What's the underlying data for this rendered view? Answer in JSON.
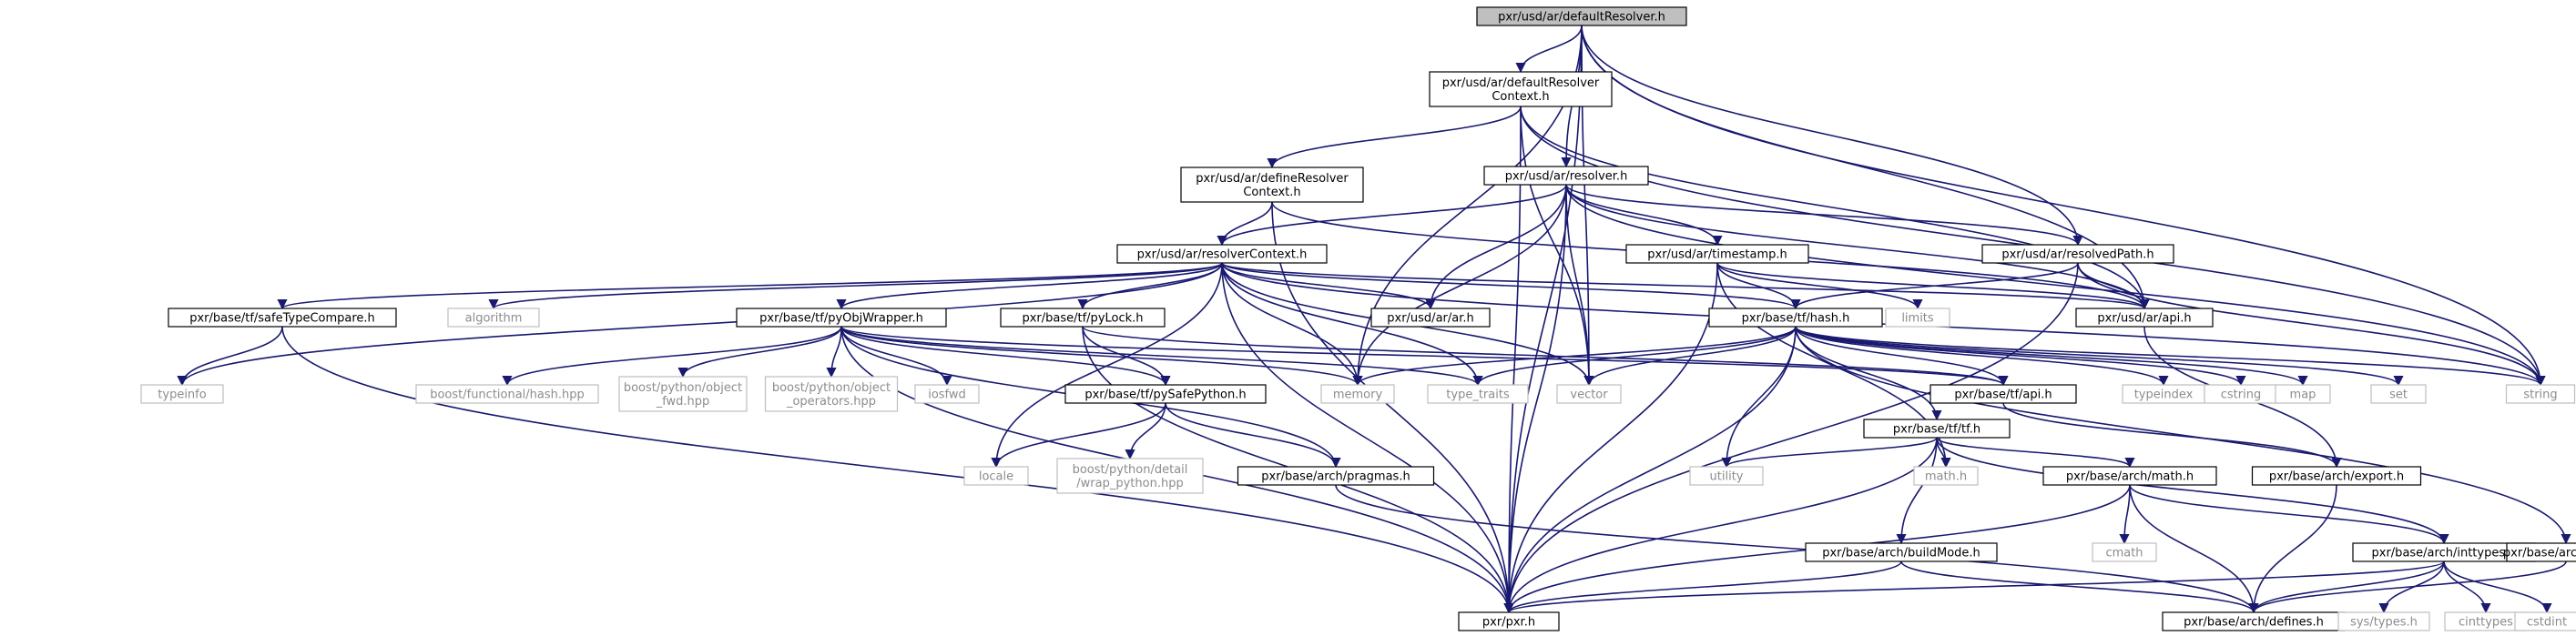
{
  "diagram": {
    "title": "pxr/usd/ar/defaultResolver.h",
    "colors": {
      "edge": "#191970",
      "node_border": "#000000",
      "root_fill": "#bfbfbf",
      "system_border": "#bfbfbf",
      "system_text": "#8c8c8c"
    },
    "nodes": [
      {
        "id": "defaultResolver",
        "lines": [
          "pxr/usd/ar/defaultResolver.h"
        ],
        "kind": "root"
      },
      {
        "id": "defaultResolverContext",
        "lines": [
          "pxr/usd/ar/defaultResolver",
          "Context.h"
        ],
        "kind": "file"
      },
      {
        "id": "defineResolverContext",
        "lines": [
          "pxr/usd/ar/defineResolver",
          "Context.h"
        ],
        "kind": "file"
      },
      {
        "id": "resolver",
        "lines": [
          "pxr/usd/ar/resolver.h"
        ],
        "kind": "file"
      },
      {
        "id": "resolverContext",
        "lines": [
          "pxr/usd/ar/resolverContext.h"
        ],
        "kind": "file"
      },
      {
        "id": "timestamp",
        "lines": [
          "pxr/usd/ar/timestamp.h"
        ],
        "kind": "file"
      },
      {
        "id": "resolvedPath",
        "lines": [
          "pxr/usd/ar/resolvedPath.h"
        ],
        "kind": "file"
      },
      {
        "id": "safeTypeCompare",
        "lines": [
          "pxr/base/tf/safeTypeCompare.h"
        ],
        "kind": "file"
      },
      {
        "id": "algorithm",
        "lines": [
          "algorithm"
        ],
        "kind": "system"
      },
      {
        "id": "pyObjWrapper",
        "lines": [
          "pxr/base/tf/pyObjWrapper.h"
        ],
        "kind": "file"
      },
      {
        "id": "pyLock",
        "lines": [
          "pxr/base/tf/pyLock.h"
        ],
        "kind": "file"
      },
      {
        "id": "arh",
        "lines": [
          "pxr/usd/ar/ar.h"
        ],
        "kind": "file"
      },
      {
        "id": "hash",
        "lines": [
          "pxr/base/tf/hash.h"
        ],
        "kind": "file"
      },
      {
        "id": "limits",
        "lines": [
          "limits"
        ],
        "kind": "system"
      },
      {
        "id": "arapi",
        "lines": [
          "pxr/usd/ar/api.h"
        ],
        "kind": "file"
      },
      {
        "id": "typeinfo",
        "lines": [
          "typeinfo"
        ],
        "kind": "system"
      },
      {
        "id": "boostHash",
        "lines": [
          "boost/functional/hash.hpp"
        ],
        "kind": "system"
      },
      {
        "id": "boostObjFwd",
        "lines": [
          "boost/python/object",
          "_fwd.hpp"
        ],
        "kind": "system"
      },
      {
        "id": "boostObjOps",
        "lines": [
          "boost/python/object",
          "_operators.hpp"
        ],
        "kind": "system"
      },
      {
        "id": "iosfwd",
        "lines": [
          "iosfwd"
        ],
        "kind": "system"
      },
      {
        "id": "pySafePython",
        "lines": [
          "pxr/base/tf/pySafePython.h"
        ],
        "kind": "file"
      },
      {
        "id": "memory",
        "lines": [
          "memory"
        ],
        "kind": "system"
      },
      {
        "id": "typeTraits",
        "lines": [
          "type_traits"
        ],
        "kind": "system"
      },
      {
        "id": "vector",
        "lines": [
          "vector"
        ],
        "kind": "system"
      },
      {
        "id": "tfapi",
        "lines": [
          "pxr/base/tf/api.h"
        ],
        "kind": "file"
      },
      {
        "id": "typeindex",
        "lines": [
          "typeindex"
        ],
        "kind": "system"
      },
      {
        "id": "cstring",
        "lines": [
          "cstring"
        ],
        "kind": "system"
      },
      {
        "id": "map",
        "lines": [
          "map"
        ],
        "kind": "system"
      },
      {
        "id": "set",
        "lines": [
          "set"
        ],
        "kind": "system"
      },
      {
        "id": "string",
        "lines": [
          "string"
        ],
        "kind": "system"
      },
      {
        "id": "tf",
        "lines": [
          "pxr/base/tf/tf.h"
        ],
        "kind": "file"
      },
      {
        "id": "utility",
        "lines": [
          "utility"
        ],
        "kind": "system"
      },
      {
        "id": "mathh",
        "lines": [
          "math.h"
        ],
        "kind": "system"
      },
      {
        "id": "archMath",
        "lines": [
          "pxr/base/arch/math.h"
        ],
        "kind": "file"
      },
      {
        "id": "archExport",
        "lines": [
          "pxr/base/arch/export.h"
        ],
        "kind": "file"
      },
      {
        "id": "locale",
        "lines": [
          "locale"
        ],
        "kind": "system"
      },
      {
        "id": "wrapPython",
        "lines": [
          "boost/python/detail",
          "/wrap_python.hpp"
        ],
        "kind": "system"
      },
      {
        "id": "pragmas",
        "lines": [
          "pxr/base/arch/pragmas.h"
        ],
        "kind": "file"
      },
      {
        "id": "cmath",
        "lines": [
          "cmath"
        ],
        "kind": "system"
      },
      {
        "id": "buildMode",
        "lines": [
          "pxr/base/arch/buildMode.h"
        ],
        "kind": "file"
      },
      {
        "id": "inttypes",
        "lines": [
          "pxr/base/arch/inttypes.h"
        ],
        "kind": "file"
      },
      {
        "id": "hints",
        "lines": [
          "pxr/base/arch/hints.h"
        ],
        "kind": "file"
      },
      {
        "id": "pxrh",
        "lines": [
          "pxr/pxr.h"
        ],
        "kind": "file"
      },
      {
        "id": "defines",
        "lines": [
          "pxr/base/arch/defines.h"
        ],
        "kind": "file"
      },
      {
        "id": "sysTypes",
        "lines": [
          "sys/types.h"
        ],
        "kind": "system"
      },
      {
        "id": "cinttypes",
        "lines": [
          "cinttypes"
        ],
        "kind": "system"
      },
      {
        "id": "cstdint",
        "lines": [
          "cstdint"
        ],
        "kind": "system"
      }
    ],
    "edges": [
      [
        "defaultResolver",
        "defaultResolverContext"
      ],
      [
        "defaultResolver",
        "resolver"
      ],
      [
        "defaultResolver",
        "resolvedPath"
      ],
      [
        "defaultResolver",
        "pxrh"
      ],
      [
        "defaultResolver",
        "memory"
      ],
      [
        "defaultResolver",
        "vector"
      ],
      [
        "defaultResolver",
        "string"
      ],
      [
        "defaultResolver",
        "arapi"
      ],
      [
        "defaultResolverContext",
        "defineResolverContext"
      ],
      [
        "defaultResolverContext",
        "arapi"
      ],
      [
        "defaultResolverContext",
        "pxrh"
      ],
      [
        "defaultResolverContext",
        "vector"
      ],
      [
        "defaultResolverContext",
        "string"
      ],
      [
        "defineResolverContext",
        "resolverContext"
      ],
      [
        "defineResolverContext",
        "pxrh"
      ],
      [
        "defineResolverContext",
        "arapi"
      ],
      [
        "resolver",
        "resolverContext"
      ],
      [
        "resolver",
        "arh"
      ],
      [
        "resolver",
        "arapi"
      ],
      [
        "resolver",
        "resolvedPath"
      ],
      [
        "resolver",
        "timestamp"
      ],
      [
        "resolver",
        "pxrh"
      ],
      [
        "resolver",
        "memory"
      ],
      [
        "resolver",
        "vector"
      ],
      [
        "resolver",
        "string"
      ],
      [
        "resolvedPath",
        "arapi"
      ],
      [
        "resolvedPath",
        "hash"
      ],
      [
        "resolvedPath",
        "pxrh"
      ],
      [
        "resolvedPath",
        "string"
      ],
      [
        "timestamp",
        "arapi"
      ],
      [
        "timestamp",
        "hash"
      ],
      [
        "timestamp",
        "pxrh"
      ],
      [
        "timestamp",
        "limits"
      ],
      [
        "timestamp",
        "mathh"
      ],
      [
        "resolverContext",
        "safeTypeCompare"
      ],
      [
        "resolverContext",
        "algorithm"
      ],
      [
        "resolverContext",
        "pyObjWrapper"
      ],
      [
        "resolverContext",
        "pyLock"
      ],
      [
        "resolverContext",
        "arh"
      ],
      [
        "resolverContext",
        "hash"
      ],
      [
        "resolverContext",
        "arapi"
      ],
      [
        "resolverContext",
        "typeinfo"
      ],
      [
        "resolverContext",
        "memory"
      ],
      [
        "resolverContext",
        "typeTraits"
      ],
      [
        "resolverContext",
        "vector"
      ],
      [
        "resolverContext",
        "string"
      ],
      [
        "resolverContext",
        "locale"
      ],
      [
        "resolverContext",
        "pxrh"
      ],
      [
        "safeTypeCompare",
        "typeinfo"
      ],
      [
        "safeTypeCompare",
        "pxrh"
      ],
      [
        "pyObjWrapper",
        "boostHash"
      ],
      [
        "pyObjWrapper",
        "boostObjFwd"
      ],
      [
        "pyObjWrapper",
        "boostObjOps"
      ],
      [
        "pyObjWrapper",
        "iosfwd"
      ],
      [
        "pyObjWrapper",
        "pySafePython"
      ],
      [
        "pyObjWrapper",
        "memory"
      ],
      [
        "pyObjWrapper",
        "typeTraits"
      ],
      [
        "pyObjWrapper",
        "tfapi"
      ],
      [
        "pyObjWrapper",
        "pragmas"
      ],
      [
        "pyObjWrapper",
        "pxrh"
      ],
      [
        "pyLock",
        "pySafePython"
      ],
      [
        "pyLock",
        "tfapi"
      ],
      [
        "pyLock",
        "pxrh"
      ],
      [
        "pySafePython",
        "locale"
      ],
      [
        "pySafePython",
        "wrapPython"
      ],
      [
        "pySafePython",
        "pragmas"
      ],
      [
        "hash",
        "tf"
      ],
      [
        "hash",
        "tfapi"
      ],
      [
        "hash",
        "memory"
      ],
      [
        "hash",
        "typeTraits"
      ],
      [
        "hash",
        "vector"
      ],
      [
        "hash",
        "typeindex"
      ],
      [
        "hash",
        "cstring"
      ],
      [
        "hash",
        "map"
      ],
      [
        "hash",
        "set"
      ],
      [
        "hash",
        "string"
      ],
      [
        "hash",
        "utility"
      ],
      [
        "hash",
        "hints"
      ],
      [
        "hash",
        "pxrh"
      ],
      [
        "tf",
        "utility"
      ],
      [
        "tf",
        "mathh"
      ],
      [
        "tf",
        "archMath"
      ],
      [
        "tf",
        "buildMode"
      ],
      [
        "tf",
        "inttypes"
      ],
      [
        "tf",
        "pxrh"
      ],
      [
        "tfapi",
        "archExport"
      ],
      [
        "arapi",
        "archExport"
      ],
      [
        "archExport",
        "defines"
      ],
      [
        "archMath",
        "cmath"
      ],
      [
        "archMath",
        "inttypes"
      ],
      [
        "archMath",
        "defines"
      ],
      [
        "archMath",
        "pxrh"
      ],
      [
        "pragmas",
        "defines"
      ],
      [
        "buildMode",
        "defines"
      ],
      [
        "buildMode",
        "pxrh"
      ],
      [
        "inttypes",
        "defines"
      ],
      [
        "inttypes",
        "sysTypes"
      ],
      [
        "inttypes",
        "cinttypes"
      ],
      [
        "inttypes",
        "cstdint"
      ],
      [
        "inttypes",
        "pxrh"
      ],
      [
        "hints",
        "defines"
      ]
    ]
  }
}
